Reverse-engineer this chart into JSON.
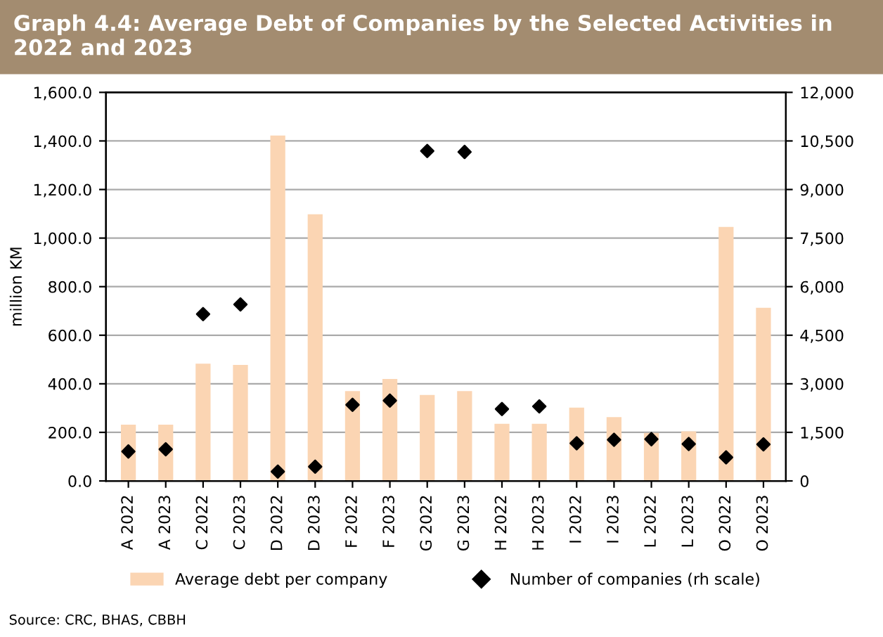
{
  "chart_data": {
    "type": "bar",
    "title": "Graph 4.4: Average Debt of Companies by the Selected Activities in 2022 and 2023",
    "categories": [
      "A 2022",
      "A 2023",
      "C 2022",
      "C 2023",
      "D 2022",
      "D 2023",
      "F 2022",
      "F 2023",
      "G 2022",
      "G 2023",
      "H 2022",
      "H 2023",
      "I 2022",
      "I 2023",
      "L 2022",
      "L 2023",
      "O 2022",
      "O 2023"
    ],
    "series": [
      {
        "name": "Average debt per company",
        "color": "#fbd5b3",
        "values": [
          232,
          232,
          483,
          478,
          1422,
          1098,
          370,
          420,
          354,
          370,
          235,
          235,
          302,
          263,
          198,
          204,
          1046,
          713
        ]
      },
      {
        "name": "Number of companies (rh scale)",
        "type": "scatter",
        "axis": "y2",
        "color": "#000000",
        "marker": "diamond",
        "values": [
          910,
          980,
          5150,
          5450,
          290,
          440,
          2350,
          2480,
          10190,
          10160,
          2220,
          2300,
          1160,
          1270,
          1290,
          1140,
          730,
          1130
        ]
      }
    ],
    "ylabel": "million KM",
    "ylim": [
      0,
      1600
    ],
    "yticks": [
      {
        "value": 0,
        "label": "0.0"
      },
      {
        "value": 200,
        "label": "200.0"
      },
      {
        "value": 400,
        "label": "400.0"
      },
      {
        "value": 600,
        "label": "600.0"
      },
      {
        "value": 800,
        "label": "800.0"
      },
      {
        "value": 1000,
        "label": "1,000.0"
      },
      {
        "value": 1200,
        "label": "1,200.0"
      },
      {
        "value": 1400,
        "label": "1,400.0"
      },
      {
        "value": 1600,
        "label": "1,600.0"
      }
    ],
    "y2lim": [
      0,
      12000
    ],
    "y2ticks": [
      0,
      {
        "value": 1500,
        "label": "1,500"
      },
      {
        "value": 3000,
        "label": "3,000"
      },
      {
        "value": 4500,
        "label": "4,500"
      },
      {
        "value": 6000,
        "label": "6,000"
      },
      {
        "value": 7500,
        "label": "7,500"
      },
      {
        "value": 9000,
        "label": "9,000"
      },
      {
        "value": 10500,
        "label": "10,500"
      },
      {
        "value": 12000,
        "label": "12,000"
      }
    ],
    "grid": "y",
    "legend": "bottom",
    "annotations": [
      "Source: CRC, BHAS, CBBH"
    ]
  }
}
